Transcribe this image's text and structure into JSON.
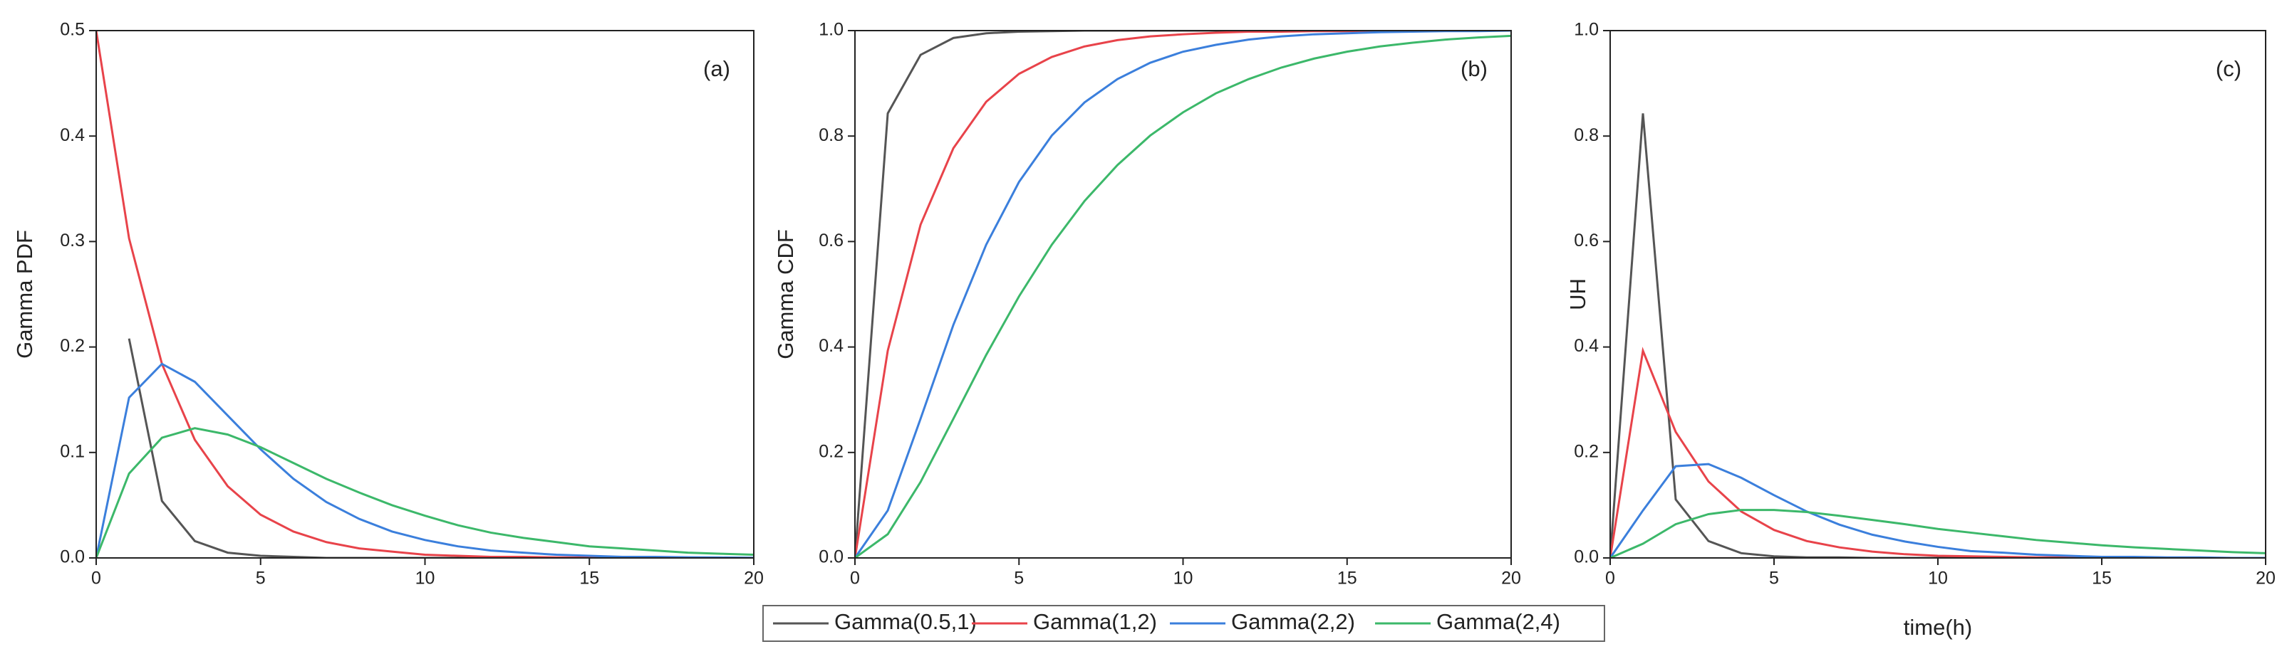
{
  "chart_data": [
    {
      "type": "line",
      "ylabel": "Gamma PDF",
      "annotation": "(a)",
      "x": [
        0,
        1,
        2,
        3,
        4,
        5,
        6,
        7,
        8,
        9,
        10,
        11,
        12,
        13,
        14,
        15,
        16,
        17,
        18,
        19,
        20
      ],
      "xlim": [
        0,
        20
      ],
      "xticks": [
        0,
        5,
        10,
        15,
        20
      ],
      "ylim": [
        0,
        0.5
      ],
      "yticks": [
        {
          "value": 0,
          "label": "0.0"
        },
        0.1,
        0.2,
        0.3,
        0.4,
        0.5
      ],
      "series": [
        {
          "name": "Gamma(0.5,1)",
          "color": "#555555",
          "values": [
            null,
            0.208,
            0.054,
            0.016,
            0.005,
            0.002,
            0.001,
            0,
            0,
            0,
            0,
            0,
            0,
            0,
            0,
            0,
            0,
            0,
            0,
            0,
            0
          ]
        },
        {
          "name": "Gamma(1,2)",
          "color": "#e8434a",
          "values": [
            0.5,
            0.303,
            0.184,
            0.112,
            0.068,
            0.041,
            0.025,
            0.015,
            0.009,
            0.006,
            0.003,
            0.002,
            0.001,
            0.001,
            0.0005,
            0.0003,
            0.0002,
            0.0001,
            0.0001,
            0,
            0
          ]
        },
        {
          "name": "Gamma(2,2)",
          "color": "#3b7fdc",
          "values": [
            0,
            0.152,
            0.184,
            0.167,
            0.135,
            0.103,
            0.075,
            0.053,
            0.037,
            0.025,
            0.017,
            0.011,
            0.007,
            0.005,
            0.003,
            0.002,
            0.001,
            0.001,
            0.0006,
            0.0004,
            0.0002
          ]
        },
        {
          "name": "Gamma(2,4)",
          "color": "#3cb86a",
          "values": [
            0,
            0.08,
            0.114,
            0.123,
            0.117,
            0.105,
            0.09,
            0.075,
            0.062,
            0.05,
            0.04,
            0.031,
            0.024,
            0.019,
            0.015,
            0.011,
            0.009,
            0.007,
            0.005,
            0.004,
            0.003
          ]
        }
      ]
    },
    {
      "type": "line",
      "ylabel": "Gamma CDF",
      "annotation": "(b)",
      "x": [
        0,
        1,
        2,
        3,
        4,
        5,
        6,
        7,
        8,
        9,
        10,
        11,
        12,
        13,
        14,
        15,
        16,
        17,
        18,
        19,
        20
      ],
      "xlim": [
        0,
        20
      ],
      "xticks": [
        0,
        5,
        10,
        15,
        20
      ],
      "ylim": [
        0,
        1
      ],
      "yticks": [
        {
          "value": 0,
          "label": "0.0"
        },
        0.2,
        0.4,
        0.6,
        0.8,
        {
          "value": 1,
          "label": "1.0"
        }
      ],
      "series": [
        {
          "color": "#555555",
          "values": [
            0,
            0.843,
            0.954,
            0.986,
            0.995,
            0.998,
            0.999,
            1,
            1,
            1,
            1,
            1,
            1,
            1,
            1,
            1,
            1,
            1,
            1,
            1,
            1
          ]
        },
        {
          "color": "#e8434a",
          "values": [
            0,
            0.393,
            0.632,
            0.777,
            0.865,
            0.918,
            0.95,
            0.97,
            0.982,
            0.989,
            0.993,
            0.996,
            0.998,
            0.998,
            0.999,
            0.999,
            1,
            1,
            1,
            1,
            1
          ]
        },
        {
          "color": "#3b7fdc",
          "values": [
            0,
            0.09,
            0.264,
            0.442,
            0.594,
            0.713,
            0.801,
            0.864,
            0.908,
            0.939,
            0.96,
            0.973,
            0.983,
            0.989,
            0.993,
            0.995,
            0.997,
            0.998,
            0.999,
            0.999,
            1
          ]
        },
        {
          "color": "#3cb86a",
          "values": [
            0,
            0.045,
            0.144,
            0.264,
            0.385,
            0.496,
            0.594,
            0.677,
            0.745,
            0.801,
            0.845,
            0.881,
            0.908,
            0.93,
            0.947,
            0.96,
            0.97,
            0.977,
            0.983,
            0.987,
            0.99
          ]
        }
      ]
    },
    {
      "type": "line",
      "ylabel": "UH",
      "xlabel": "time(h)",
      "annotation": "(c)",
      "x": [
        0,
        1,
        2,
        3,
        4,
        5,
        6,
        7,
        8,
        9,
        10,
        11,
        12,
        13,
        14,
        15,
        16,
        17,
        18,
        19,
        20
      ],
      "xlim": [
        0,
        20
      ],
      "xticks": [
        0,
        5,
        10,
        15,
        20
      ],
      "ylim": [
        0,
        1
      ],
      "yticks": [
        {
          "value": 0,
          "label": "0.0"
        },
        0.2,
        0.4,
        0.6,
        0.8,
        {
          "value": 1,
          "label": "1.0"
        }
      ],
      "series": [
        {
          "color": "#555555",
          "values": [
            0,
            0.843,
            0.111,
            0.032,
            0.009,
            0.003,
            0.001,
            0.001,
            0,
            0,
            0,
            0,
            0,
            0,
            0,
            0,
            0,
            0,
            0,
            0,
            0
          ]
        },
        {
          "color": "#e8434a",
          "values": [
            0,
            0.393,
            0.239,
            0.145,
            0.088,
            0.053,
            0.032,
            0.02,
            0.012,
            0.007,
            0.004,
            0.003,
            0.002,
            0.001,
            0.001,
            0,
            0,
            0,
            0,
            0,
            0
          ]
        },
        {
          "color": "#3b7fdc",
          "values": [
            0,
            0.09,
            0.174,
            0.178,
            0.152,
            0.119,
            0.088,
            0.063,
            0.044,
            0.031,
            0.021,
            0.013,
            0.01,
            0.006,
            0.004,
            0.002,
            0.002,
            0.001,
            0.001,
            0,
            0
          ]
        },
        {
          "color": "#3cb86a",
          "values": [
            0,
            0.027,
            0.064,
            0.083,
            0.091,
            0.091,
            0.087,
            0.08,
            0.072,
            0.064,
            0.055,
            0.048,
            0.041,
            0.034,
            0.029,
            0.024,
            0.02,
            0.017,
            0.014,
            0.011,
            0.009
          ]
        }
      ]
    }
  ]
}
